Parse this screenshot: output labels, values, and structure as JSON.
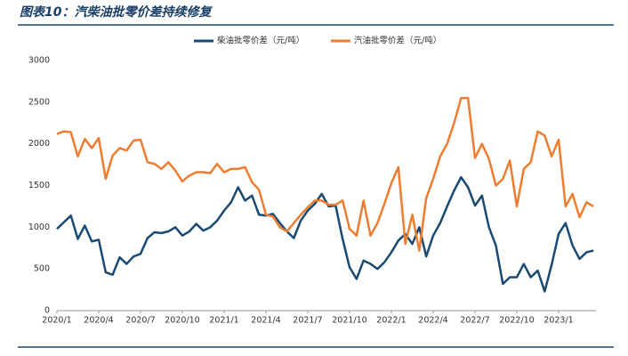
{
  "chart_data": {
    "type": "line",
    "title": "图表10：汽柴油批零价差持续修复",
    "categories": [
      "2020/1",
      null,
      null,
      null,
      null,
      null,
      "2020/4",
      null,
      null,
      null,
      null,
      null,
      "2020/7",
      null,
      null,
      null,
      null,
      null,
      "2020/10",
      null,
      null,
      null,
      null,
      null,
      "2021/1",
      null,
      null,
      null,
      null,
      null,
      "2021/4",
      null,
      null,
      null,
      null,
      null,
      "2021/7",
      null,
      null,
      null,
      null,
      null,
      "2021/10",
      null,
      null,
      null,
      null,
      null,
      "2022/1",
      null,
      null,
      null,
      null,
      null,
      "2022/4",
      null,
      null,
      null,
      null,
      null,
      "2022/7",
      null,
      null,
      null,
      null,
      null,
      "2022/10",
      null,
      null,
      null,
      null,
      null,
      "2023/1",
      null,
      null,
      null,
      null,
      null
    ],
    "series": [
      {
        "name": "柴油批零价差（元/吨）",
        "color": "#1a4a72",
        "values": [
          980,
          1060,
          1140,
          860,
          1020,
          830,
          850,
          460,
          430,
          640,
          560,
          650,
          680,
          870,
          940,
          930,
          950,
          1000,
          900,
          950,
          1040,
          960,
          1000,
          1080,
          1200,
          1300,
          1480,
          1320,
          1380,
          1150,
          1140,
          1160,
          1050,
          950,
          870,
          1080,
          1200,
          1280,
          1400,
          1250,
          1260,
          860,
          520,
          380,
          600,
          560,
          500,
          580,
          700,
          840,
          920,
          800,
          1000,
          650,
          900,
          1050,
          1250,
          1440,
          1600,
          1480,
          1260,
          1380,
          1000,
          780,
          320,
          400,
          400,
          560,
          400,
          480,
          230,
          550,
          920,
          1050,
          780,
          620,
          700,
          720
        ]
      },
      {
        "name": "汽油批零价差（元/吨）",
        "color": "#ed7d31",
        "values": [
          2120,
          2150,
          2140,
          1850,
          2060,
          1950,
          2070,
          1580,
          1860,
          1950,
          1920,
          2040,
          2050,
          1780,
          1760,
          1700,
          1780,
          1680,
          1550,
          1620,
          1660,
          1660,
          1650,
          1760,
          1660,
          1700,
          1700,
          1720,
          1540,
          1450,
          1150,
          1130,
          1000,
          950,
          1050,
          1150,
          1240,
          1320,
          1320,
          1270,
          1270,
          1320,
          980,
          900,
          1320,
          900,
          1050,
          1280,
          1530,
          1720,
          800,
          1150,
          720,
          1350,
          1580,
          1850,
          2000,
          2250,
          2550,
          2550,
          1830,
          2000,
          1820,
          1500,
          1580,
          1800,
          1250,
          1700,
          1780,
          2150,
          2100,
          1850,
          2050,
          1250,
          1400,
          1120,
          1300,
          1250
        ]
      }
    ],
    "ylim": [
      0,
      3000
    ],
    "yticks": [
      0,
      500,
      1000,
      1500,
      2000,
      2500,
      3000
    ],
    "grid": false,
    "legend": "top"
  }
}
